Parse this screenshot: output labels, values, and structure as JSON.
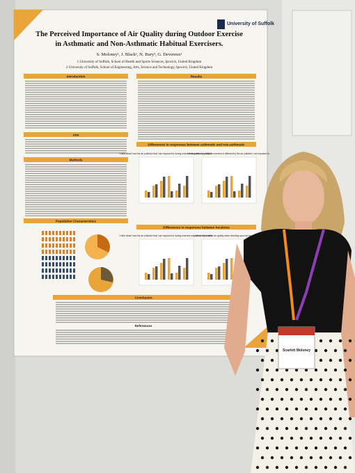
{
  "poster": {
    "logo": "University of Suffolk",
    "title_lines": [
      "The Perceived Importance of Air Quality during Outdoor Exercise",
      "in Asthmatic and Non-Asthmatic Habitual Exercisers."
    ],
    "authors": "S. Moloney¹, J. Black¹, N. Bury², G. Devereux¹",
    "affiliations": [
      "1 University of Suffolk, School of Health and Sports Sciences, Ipswich, United Kingdom",
      "2 University of Suffolk, School of Engineering, Arts, Science and Technology, Ipswich, United Kingdom"
    ],
    "sections": {
      "introduction": "Introduction",
      "aim": "Aim",
      "methods": "Methods",
      "results": "Results",
      "asthma_diff": "Differences in responses between asthmatic and non-asthmatic",
      "population": "Population Characteristics",
      "location_diff": "Differences in responses between locations",
      "conclusion": "Conclusion",
      "references": "References"
    },
    "chart_titles": [
      "I think about how the air pollution that I am exposed to during exercise may affect my health",
      "I think about my ability to exercise is affected by the air pollution I am exposed to",
      "I think about how the air pollution that I am exposed to during exercise may affect my health",
      "I do not think about air quality when deciding upon an exercise route"
    ]
  },
  "badge": {
    "name": "Scarlett Moloney"
  }
}
